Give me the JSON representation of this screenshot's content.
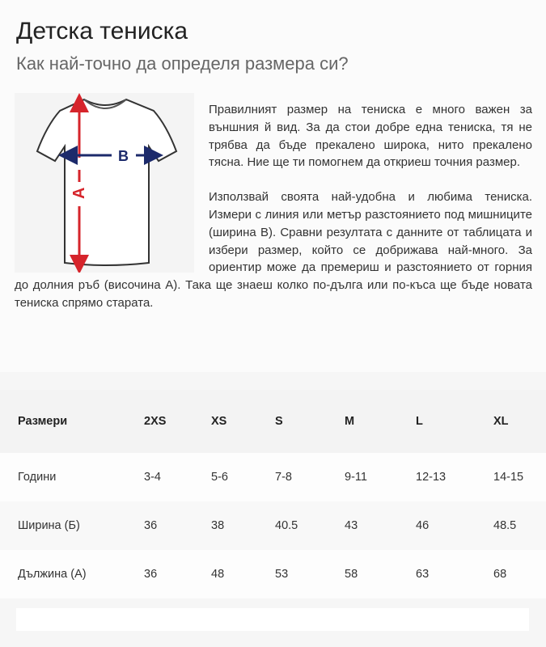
{
  "header": {
    "title": "Детска тениска",
    "subtitle": "Как най-точно да определя размера си?"
  },
  "figure": {
    "icon": "tshirt-measurement-diagram",
    "label_a": "A",
    "label_b": "B",
    "colors": {
      "a_arrow": "#d6242b",
      "b_arrow": "#1c2a6b"
    }
  },
  "paragraphs": [
    "Правилният размер на тениска е много важен за външния й вид. За да стои добре една тениска, тя не трябва да бъде прекалено широка, нито прекалено тясна. Ние ще ти помогнем да откриеш точния размер.",
    "Използвай своята най-удобна и любима тениска. Измери с линия или метър разстоянието под мишниците (ширина В). Сравни резултата с данните от таблицата и избери размер, който се добрижава най-много. За ориентир може да премериш и разстоянието от горния до долния ръб (височина А). Така ще знаеш колко по-дълга или по-къса ще бъде новата тениска спрямо старата."
  ],
  "table": {
    "headers": [
      "Размери",
      "2XS",
      "XS",
      "S",
      "M",
      "L",
      "XL"
    ],
    "rows": [
      [
        "Години",
        "3-4",
        "5-6",
        "7-8",
        "9-11",
        "12-13",
        "14-15"
      ],
      [
        "Ширина (Б)",
        "36",
        "38",
        "40.5",
        "43",
        "46",
        "48.5"
      ],
      [
        "Дължина (А)",
        "36",
        "48",
        "53",
        "58",
        "63",
        "68"
      ]
    ]
  }
}
